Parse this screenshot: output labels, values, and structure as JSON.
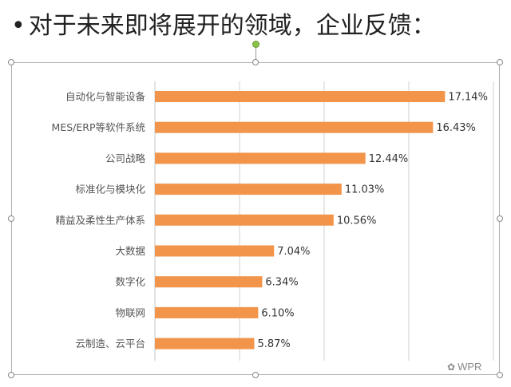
{
  "header": {
    "bullet": "•",
    "title": "对于未来即将展开的领域，企业反馈："
  },
  "watermark": {
    "icon": "wechat-icon",
    "text": "WPR"
  },
  "colors": {
    "bar": "#f2954a",
    "grid": "#d0d0d0"
  },
  "chart_data": {
    "type": "bar",
    "orientation": "horizontal",
    "title": "",
    "xlabel": "",
    "ylabel": "",
    "xlim": [
      0,
      20
    ],
    "grid": true,
    "legend": "none",
    "categories": [
      "自动化与智能设备",
      "MES/ERP等软件系统",
      "公司战略",
      "标准化与模块化",
      "精益及柔性生产体系",
      "大数据",
      "数字化",
      "物联网",
      "云制造、云平台"
    ],
    "values": [
      17.14,
      16.43,
      12.44,
      11.03,
      10.56,
      7.04,
      6.34,
      6.1,
      5.87
    ],
    "value_labels": [
      "17.14%",
      "16.43%",
      "12.44%",
      "11.03%",
      "10.56%",
      "7.04%",
      "6.34%",
      "6.10%",
      "5.87%"
    ]
  }
}
